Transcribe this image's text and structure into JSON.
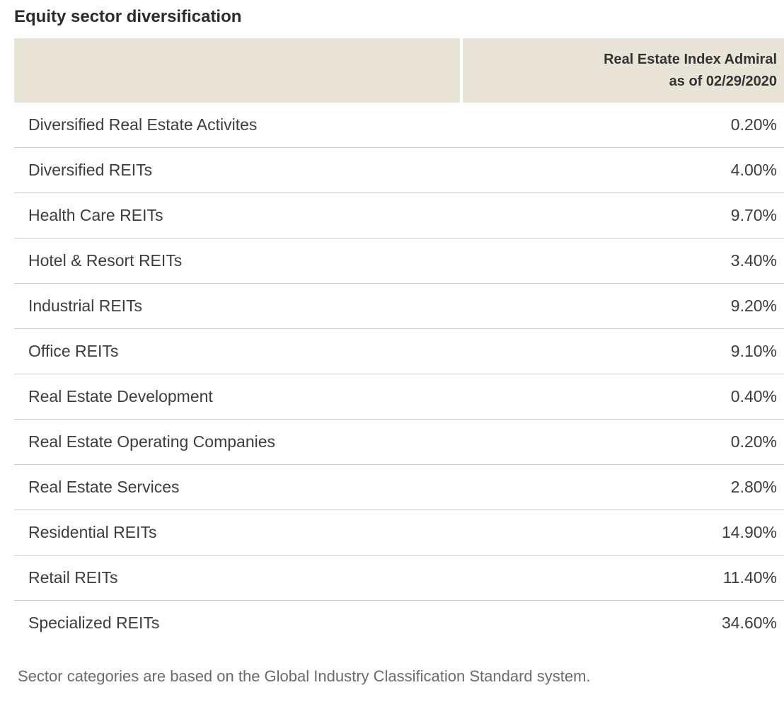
{
  "page": {
    "title": "Equity sector diversification",
    "footnote": "Sector categories are based on the Global Industry Classification Standard system."
  },
  "table": {
    "column_header": {
      "line1": "Real Estate Index Admiral",
      "line2": "as of 02/29/2020"
    },
    "rows": [
      {
        "sector": "Diversified Real Estate Activites",
        "value": "0.20%"
      },
      {
        "sector": "Diversified REITs",
        "value": "4.00%"
      },
      {
        "sector": "Health Care REITs",
        "value": "9.70%"
      },
      {
        "sector": "Hotel & Resort REITs",
        "value": "3.40%"
      },
      {
        "sector": "Industrial REITs",
        "value": "9.20%"
      },
      {
        "sector": "Office REITs",
        "value": "9.10%"
      },
      {
        "sector": "Real Estate Development",
        "value": "0.40%"
      },
      {
        "sector": "Real Estate Operating Companies",
        "value": "0.20%"
      },
      {
        "sector": "Real Estate Services",
        "value": "2.80%"
      },
      {
        "sector": "Residential REITs",
        "value": "14.90%"
      },
      {
        "sector": "Retail REITs",
        "value": "11.40%"
      },
      {
        "sector": "Specialized REITs",
        "value": "34.60%"
      }
    ]
  },
  "colors": {
    "header_background": "#e8e4d7",
    "divider": "#cccccc",
    "title_text": "#2b2b2b",
    "row_text": "#3d3d3d",
    "footnote_text": "#6b6b6b"
  }
}
